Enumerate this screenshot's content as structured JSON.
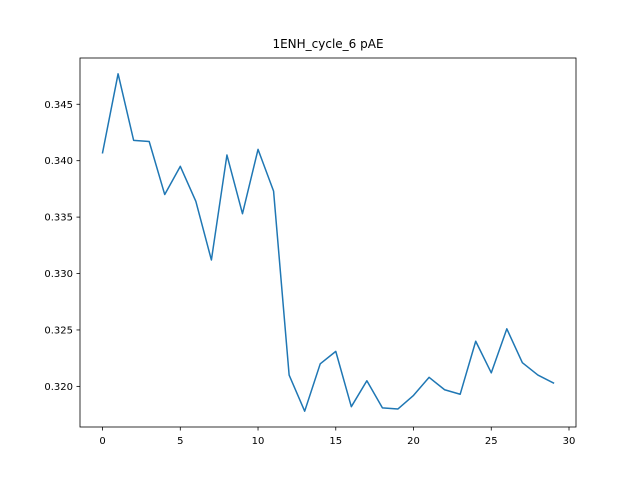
{
  "chart_data": {
    "type": "line",
    "title": "1ENH_cycle_6 pAE",
    "xlabel": "",
    "ylabel": "",
    "xlim": [
      -1.45,
      30.45
    ],
    "ylim": [
      0.3164,
      0.3491
    ],
    "x_ticks": [
      0,
      5,
      10,
      15,
      20,
      25,
      30
    ],
    "y_ticks": [
      0.32,
      0.325,
      0.33,
      0.335,
      0.34,
      0.345
    ],
    "y_tick_labels": [
      "0.320",
      "0.325",
      "0.330",
      "0.335",
      "0.340",
      "0.345"
    ],
    "grid": false,
    "line_color": "#1f77b4",
    "series": [
      {
        "x": [
          0,
          1,
          2,
          3,
          4,
          5,
          6,
          7,
          8,
          9,
          10,
          11,
          12,
          13,
          14,
          15,
          16,
          17,
          18,
          19,
          20,
          21,
          22,
          23,
          24,
          25,
          26,
          27,
          28,
          29
        ],
        "values": [
          0.3407,
          0.3477,
          0.3418,
          0.3417,
          0.337,
          0.3395,
          0.3364,
          0.3312,
          0.3405,
          0.3353,
          0.341,
          0.3373,
          0.321,
          0.3178,
          0.322,
          0.3231,
          0.3182,
          0.3205,
          0.3181,
          0.318,
          0.3192,
          0.3208,
          0.3197,
          0.3193,
          0.324,
          0.3212,
          0.3251,
          0.3221,
          0.321,
          0.3203
        ]
      }
    ]
  }
}
